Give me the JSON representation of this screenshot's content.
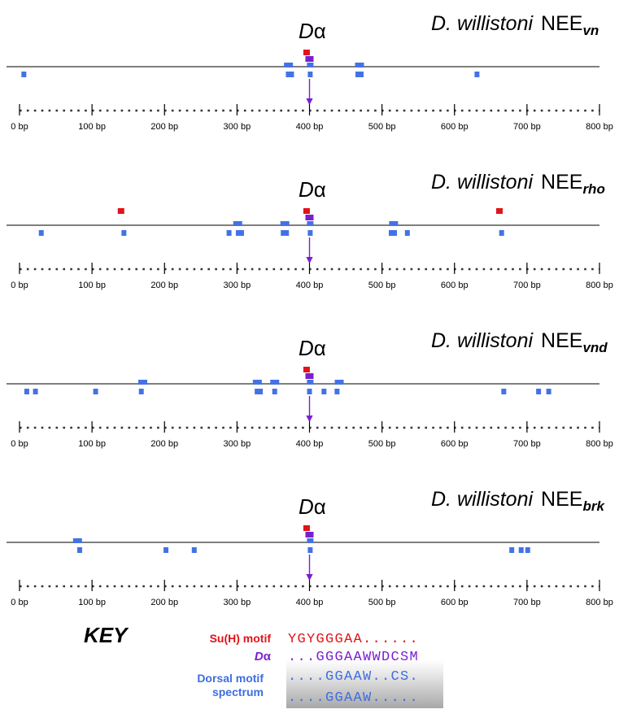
{
  "axis": {
    "tick_labels": [
      "0 bp",
      "100 bp",
      "200 bp",
      "300 bp",
      "400 bp",
      "500 bp",
      "600 bp",
      "700 bp",
      "800 bp"
    ],
    "max_bp": 800
  },
  "panels": [
    {
      "title_species": "D. willistoni",
      "title_element": "NEE",
      "title_sub": "vn",
      "feature_label_italic": "D",
      "feature_label_greek": "α",
      "su_h": [
        [
          396,
          1
        ]
      ],
      "dalpha": [
        [
          400,
          1
        ]
      ],
      "dorsal_top": [
        [
          371,
          2
        ],
        [
          401,
          1
        ],
        [
          469,
          2
        ]
      ],
      "dorsal_bottom": [
        [
          6,
          1
        ],
        [
          373,
          2
        ],
        [
          401,
          1
        ],
        [
          469,
          2
        ],
        [
          631,
          1
        ]
      ]
    },
    {
      "title_species": "D. willistoni",
      "title_element": "NEE",
      "title_sub": "rho",
      "feature_label_italic": "D",
      "feature_label_greek": "α",
      "su_h": [
        [
          140,
          1
        ],
        [
          396,
          1
        ],
        [
          662,
          1
        ]
      ],
      "dalpha": [
        [
          400,
          1
        ]
      ],
      "dorsal_top": [
        [
          301,
          2
        ],
        [
          366,
          2
        ],
        [
          401,
          1
        ],
        [
          516,
          2
        ]
      ],
      "dorsal_bottom": [
        [
          30,
          1
        ],
        [
          144,
          1
        ],
        [
          289,
          1
        ],
        [
          304,
          2
        ],
        [
          366,
          2
        ],
        [
          401,
          1
        ],
        [
          515,
          2
        ],
        [
          535,
          1
        ],
        [
          665,
          1
        ]
      ]
    },
    {
      "title_species": "D. willistoni",
      "title_element": "NEE",
      "title_sub": "vnd",
      "feature_label_italic": "D",
      "feature_label_greek": "α",
      "su_h": [
        [
          396,
          1
        ]
      ],
      "dalpha": [
        [
          400,
          1
        ]
      ],
      "dorsal_top": [
        [
          170,
          2
        ],
        [
          328,
          2
        ],
        [
          352,
          2
        ],
        [
          401,
          1
        ],
        [
          441,
          2
        ]
      ],
      "dorsal_bottom": [
        [
          10,
          1
        ],
        [
          22,
          1
        ],
        [
          105,
          1
        ],
        [
          168,
          1
        ],
        [
          330,
          2
        ],
        [
          352,
          1
        ],
        [
          400,
          1
        ],
        [
          420,
          1
        ],
        [
          438,
          1
        ],
        [
          668,
          1
        ],
        [
          716,
          1
        ],
        [
          730,
          1
        ]
      ]
    },
    {
      "title_species": "D. willistoni",
      "title_element": "NEE",
      "title_sub": "brk",
      "feature_label_italic": "D",
      "feature_label_greek": "α",
      "su_h": [
        [
          396,
          1
        ]
      ],
      "dalpha": [
        [
          400,
          1
        ]
      ],
      "dorsal_top": [
        [
          80,
          2
        ],
        [
          401,
          1
        ]
      ],
      "dorsal_bottom": [
        [
          83,
          1
        ],
        [
          202,
          1
        ],
        [
          241,
          1
        ],
        [
          401,
          1
        ],
        [
          679,
          1
        ],
        [
          692,
          1
        ],
        [
          701,
          1
        ]
      ]
    }
  ],
  "key": {
    "title": "KEY",
    "rows": [
      {
        "label": "Su(H) motif",
        "seq": "YGYGGGAA......",
        "color": "#e0141a"
      },
      {
        "label_italic": "D",
        "label_greek": "α",
        "seq": "...GGGAAWWDCSM",
        "color": "#7a1fd0"
      },
      {
        "label": "Dorsal motif",
        "label2": "spectrum",
        "seq": "....GGAAW..CS.",
        "seq2": "....GGAAW.....",
        "color": "#3d6ee0"
      }
    ]
  },
  "colors": {
    "su_h": "#e0141a",
    "dalpha": "#7a1fd0",
    "dorsal": "#4472e6",
    "arrow": "#7a1fd0",
    "line": "#333333",
    "dot_color": "#333333"
  }
}
